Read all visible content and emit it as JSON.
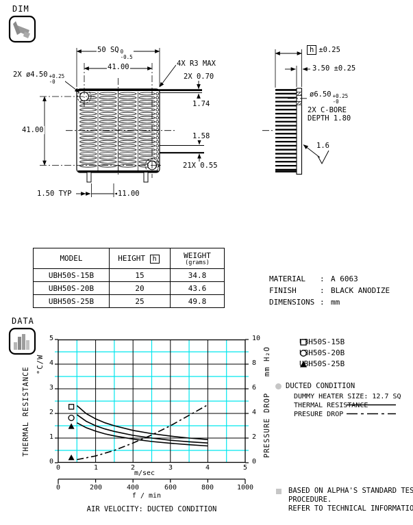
{
  "sections": {
    "dim_label": "DIM",
    "data_label": "DATA"
  },
  "drawing": {
    "front": {
      "dim_50sq": "50 SQ",
      "dim_50sq_tol_top": "0",
      "dim_50sq_tol_bot": "-0.5",
      "dim_41_top": "41.00",
      "dim_holes": "2X ø4.50",
      "dim_holes_tol_top": "+0.25",
      "dim_holes_tol_bot": "-0",
      "dim_r3": "4X R3 MAX",
      "dim_070": "2X 0.70",
      "dim_174": "1.74",
      "dim_158": "1.58",
      "dim_21x": "21X 0.55",
      "dim_41_left": "41.00",
      "dim_150": "1.50 TYP",
      "dim_1100": "11.00"
    },
    "side": {
      "dim_h": "h",
      "dim_h_tol": "±0.25",
      "dim_350": "3.50 ±0.25",
      "dim_650": "ø6.50",
      "dim_650_tol_top": "+0.25",
      "dim_650_tol_bot": "-0",
      "dim_cbore1": "2X C-BORE",
      "dim_cbore2": "DEPTH 1.80",
      "dim_finish": "1.6"
    }
  },
  "spec_table": {
    "col_model": "MODEL",
    "col_height": "HEIGHT",
    "col_height_var": "h",
    "col_weight": "WEIGHT",
    "col_weight_unit": "(grams)",
    "rows": [
      {
        "model": "UBH50S-15B",
        "height": "15",
        "weight": "34.8"
      },
      {
        "model": "UBH50S-20B",
        "height": "20",
        "weight": "43.6"
      },
      {
        "model": "UBH50S-25B",
        "height": "25",
        "weight": "49.8"
      }
    ]
  },
  "properties": {
    "material_label": "MATERIAL",
    "material_value": "A 6063",
    "finish_label": "FINISH",
    "finish_value": "BLACK ANODIZE",
    "dimensions_label": "DIMENSIONS",
    "dimensions_value": "mm",
    "colon": ":"
  },
  "chart_data": {
    "type": "line",
    "x_axis": {
      "label": "m/sec",
      "min": 0,
      "max": 5,
      "ticks": [
        0,
        1,
        2,
        3,
        4,
        5
      ]
    },
    "x_axis2": {
      "label": "f / min",
      "min": 0,
      "max": 1000,
      "ticks": [
        0,
        200,
        400,
        600,
        800,
        1000
      ]
    },
    "y_left": {
      "unit": "°C/W",
      "label": "THERMAL RESISTANCE",
      "min": 0,
      "max": 5,
      "ticks": [
        0,
        1,
        2,
        3,
        4,
        5
      ]
    },
    "y_right": {
      "unit": "mm H₂O",
      "label": "PRESSURE DROP",
      "min": 0,
      "max": 10,
      "ticks": [
        0,
        2,
        4,
        6,
        8,
        10
      ]
    },
    "grid": {
      "major_color": "#000000",
      "minor_color": "#00e6ee"
    },
    "series": [
      {
        "name": "UBH50S-15B",
        "axis": "left",
        "style": "solid",
        "points": [
          [
            0.5,
            2.32
          ],
          [
            0.75,
            1.99
          ],
          [
            1,
            1.78
          ],
          [
            1.25,
            1.62
          ],
          [
            1.5,
            1.5
          ],
          [
            2,
            1.31
          ],
          [
            2.5,
            1.18
          ],
          [
            3,
            1.08
          ],
          [
            3.5,
            1.0
          ],
          [
            4,
            0.94
          ]
        ]
      },
      {
        "name": "UBH50S-20B",
        "axis": "left",
        "style": "solid",
        "points": [
          [
            0.5,
            1.95
          ],
          [
            0.75,
            1.68
          ],
          [
            1,
            1.5
          ],
          [
            1.25,
            1.37
          ],
          [
            1.5,
            1.27
          ],
          [
            2,
            1.11
          ],
          [
            2.5,
            1.0
          ],
          [
            3,
            0.91
          ],
          [
            3.5,
            0.85
          ],
          [
            4,
            0.8
          ]
        ]
      },
      {
        "name": "UBH50S-25B",
        "axis": "left",
        "style": "solid",
        "points": [
          [
            0.5,
            1.62
          ],
          [
            0.75,
            1.42
          ],
          [
            1,
            1.28
          ],
          [
            1.25,
            1.17
          ],
          [
            1.5,
            1.09
          ],
          [
            2,
            0.96
          ],
          [
            2.5,
            0.86
          ],
          [
            3,
            0.79
          ],
          [
            3.5,
            0.73
          ],
          [
            4,
            0.68
          ]
        ]
      },
      {
        "name": "PRESSURE DROP",
        "axis": "right",
        "style": "dashdot",
        "points": [
          [
            0.5,
            0.25
          ],
          [
            1,
            0.55
          ],
          [
            1.5,
            1.0
          ],
          [
            2,
            1.6
          ],
          [
            2.5,
            2.25
          ],
          [
            3,
            3.0
          ],
          [
            3.5,
            3.85
          ],
          [
            4,
            4.7
          ]
        ]
      }
    ],
    "edge_markers": [
      {
        "shape": "square",
        "x": 0.35,
        "y": 2.27
      },
      {
        "shape": "circle",
        "x": 0.35,
        "y": 1.82
      },
      {
        "shape": "triangle",
        "x": 0.35,
        "y": 1.47
      },
      {
        "shape": "triangle",
        "x": 0.35,
        "y": 0.2
      }
    ],
    "caption": "AIR VELOCITY:  DUCTED CONDITION"
  },
  "legend": {
    "items": [
      {
        "marker": "square",
        "label": "UBH50S-15B"
      },
      {
        "marker": "circle",
        "label": "UBH50S-20B"
      },
      {
        "marker": "triangle",
        "label": "UBH50S-25B"
      }
    ],
    "condition_title": "DUCTED CONDITION",
    "dummy_line": "DUMMY HEATER SIZE: 12.7 SQ",
    "thermal_line": "THERMAL RESISTANCE",
    "pressure_line": "PRESURE DROP"
  },
  "notes": {
    "line1": "BASED ON ALPHA'S STANDARD TEST",
    "line2": "PROCEDURE.",
    "line3": "REFER TO TECHNICAL INFORMATION."
  }
}
